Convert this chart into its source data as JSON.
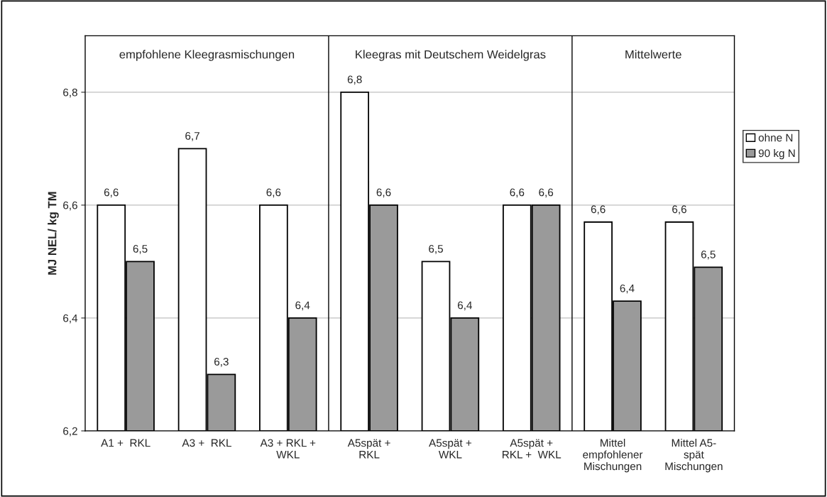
{
  "chart_data": {
    "type": "bar",
    "ylabel": "MJ NEL/ kg TM",
    "categories": [
      "A1 +  RKL",
      "A3 +  RKL",
      "A3 + RKL +\nWKL",
      "A5spät +\nRKL",
      "A5spät +\nWKL",
      "A5spät +\nRKL +  WKL",
      "Mittel\nempfohlener\nMischungen",
      "Mittel A5-\nspät\nMischungen"
    ],
    "series": [
      {
        "name": "ohne N",
        "color": "#ffffff",
        "values": [
          6.6,
          6.7,
          6.6,
          6.8,
          6.5,
          6.6,
          6.57,
          6.57
        ],
        "value_labels": [
          "6,6",
          "6,7",
          "6,6",
          "6,8",
          "6,5",
          "6,6",
          "6,6",
          "6,6"
        ]
      },
      {
        "name": "90 kg N",
        "color": "#9a9a9a",
        "values": [
          6.5,
          6.3,
          6.4,
          6.6,
          6.4,
          6.6,
          6.43,
          6.49
        ],
        "value_labels": [
          "6,5",
          "6,3",
          "6,4",
          "6,6",
          "6,4",
          "6,6",
          "6,4",
          "6,5"
        ]
      }
    ],
    "ylim": [
      6.2,
      6.9
    ],
    "yticks": [
      {
        "value": 6.2,
        "label": "6,2"
      },
      {
        "value": 6.4,
        "label": "6,4"
      },
      {
        "value": 6.6,
        "label": "6,6"
      },
      {
        "value": 6.8,
        "label": "6,8"
      }
    ],
    "annotations": [
      "empfohlene Kleegrasmischungen",
      "Kleegras mit Deutschem Weidelgras",
      "Mittelwerte"
    ],
    "grid": "y",
    "legend": "right"
  }
}
